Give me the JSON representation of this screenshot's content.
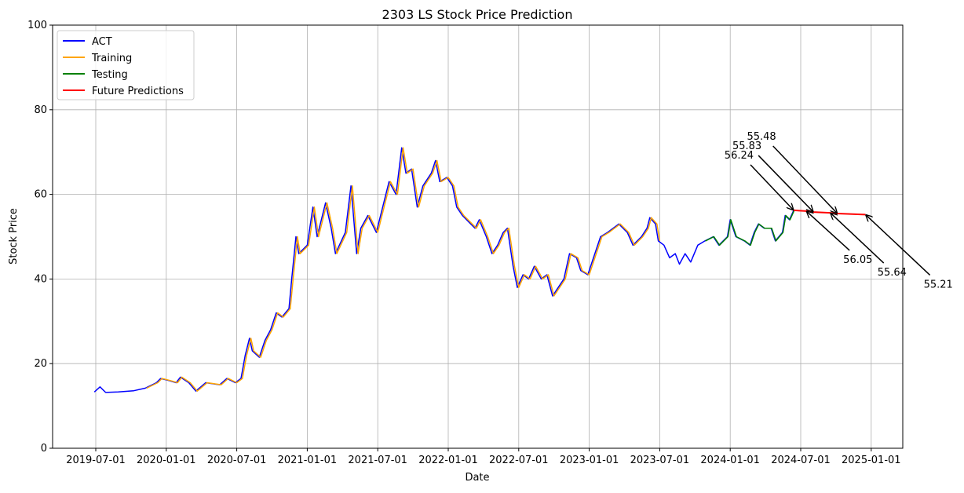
{
  "chart_data": {
    "type": "line",
    "title": "2303 LS Stock Price Prediction",
    "xlabel": "Date",
    "ylabel": "Stock Price",
    "ylim": [
      0,
      100
    ],
    "xlim_years": [
      2019.2,
      2025.22
    ],
    "grid": true,
    "legend_placement": "top-left",
    "y_ticks": [
      "0",
      "20",
      "40",
      "60",
      "80",
      "100"
    ],
    "x_ticks": [
      {
        "year": 2019.5,
        "label": "2019-07-01"
      },
      {
        "year": 2020.0,
        "label": "2020-01-01"
      },
      {
        "year": 2020.5,
        "label": "2020-07-01"
      },
      {
        "year": 2021.0,
        "label": "2021-01-01"
      },
      {
        "year": 2021.5,
        "label": "2021-07-01"
      },
      {
        "year": 2022.0,
        "label": "2022-01-01"
      },
      {
        "year": 2022.5,
        "label": "2022-07-01"
      },
      {
        "year": 2023.0,
        "label": "2023-01-01"
      },
      {
        "year": 2023.5,
        "label": "2023-07-01"
      },
      {
        "year": 2024.0,
        "label": "2024-01-01"
      },
      {
        "year": 2024.5,
        "label": "2024-07-01"
      },
      {
        "year": 2025.0,
        "label": "2025-01-01"
      }
    ],
    "legend": [
      {
        "name": "ACT",
        "color": "#0000ff"
      },
      {
        "name": "Training",
        "color": "#ffa500"
      },
      {
        "name": "Testing",
        "color": "#008000"
      },
      {
        "name": "Future Predictions",
        "color": "#ff0000"
      }
    ],
    "act": {
      "x": [
        2019.49,
        2019.53,
        2019.57,
        2019.66,
        2019.77,
        2019.85,
        2019.93,
        2019.96,
        2020.02,
        2020.07,
        2020.1,
        2020.16,
        2020.21,
        2020.28,
        2020.38,
        2020.43,
        2020.49,
        2020.53,
        2020.56,
        2020.59,
        2020.61,
        2020.66,
        2020.7,
        2020.74,
        2020.78,
        2020.82,
        2020.87,
        2020.89,
        2020.92,
        2020.94,
        2021.0,
        2021.04,
        2021.07,
        2021.13,
        2021.17,
        2021.2,
        2021.27,
        2021.31,
        2021.35,
        2021.38,
        2021.43,
        2021.49,
        2021.58,
        2021.63,
        2021.67,
        2021.7,
        2021.74,
        2021.78,
        2021.82,
        2021.88,
        2021.91,
        2021.94,
        2021.99,
        2022.03,
        2022.06,
        2022.1,
        2022.16,
        2022.19,
        2022.22,
        2022.27,
        2022.31,
        2022.35,
        2022.39,
        2022.42,
        2022.46,
        2022.49,
        2022.53,
        2022.57,
        2022.61,
        2022.66,
        2022.7,
        2022.74,
        2022.78,
        2022.82,
        2022.86,
        2022.91,
        2022.94,
        2022.99,
        2023.03,
        2023.08,
        2023.13,
        2023.17,
        2023.21,
        2023.27,
        2023.31,
        2023.37,
        2023.41,
        2023.43,
        2023.47,
        2023.49,
        2023.53,
        2023.57,
        2023.61,
        2023.64,
        2023.68,
        2023.72,
        2023.77,
        2023.82,
        2023.88,
        2023.92,
        2023.98,
        2024.0,
        2024.04,
        2024.1,
        2024.14,
        2024.17,
        2024.2,
        2024.24,
        2024.29,
        2024.32,
        2024.37,
        2024.39,
        2024.42,
        2024.45
      ],
      "y": [
        13.3,
        14.5,
        13.2,
        13.3,
        13.6,
        14.2,
        15.5,
        16.5,
        16,
        15.5,
        16.8,
        15.5,
        13.5,
        15.5,
        15,
        16.5,
        15.5,
        16.5,
        22,
        26,
        23,
        21.5,
        25.5,
        28,
        32,
        31,
        33,
        40,
        50,
        46,
        48,
        57,
        50,
        58,
        52,
        46,
        51,
        62,
        46,
        52,
        55,
        51,
        63,
        60,
        71,
        65,
        66,
        57,
        62,
        65,
        68,
        63,
        64,
        62,
        57,
        55,
        53,
        52,
        54,
        50,
        46,
        48,
        51,
        52,
        43,
        38,
        41,
        40,
        43,
        40,
        41,
        36,
        38,
        40,
        46,
        45,
        42,
        41,
        45,
        50,
        51,
        52,
        53,
        51,
        48,
        50,
        52,
        54.5,
        53,
        49,
        48,
        45,
        46,
        43.5,
        46,
        44,
        48,
        49,
        50,
        48,
        50,
        54,
        50,
        49,
        48,
        51,
        53,
        52,
        52,
        49,
        51,
        55,
        54,
        56.2
      ]
    },
    "training_range": [
      2019.85,
      2023.49
    ],
    "testing_range": [
      2023.82,
      2024.45
    ],
    "future": {
      "x": [
        2024.45,
        2024.54,
        2024.59,
        2024.71,
        2024.76,
        2024.96
      ],
      "y": [
        56.24,
        56.05,
        55.83,
        55.64,
        55.48,
        55.21
      ]
    },
    "annotations": [
      "56.24",
      "56.05",
      "55.83",
      "55.64",
      "55.48",
      "55.21"
    ]
  }
}
